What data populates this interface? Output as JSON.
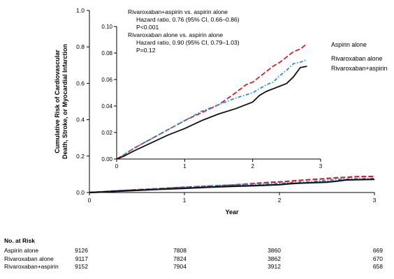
{
  "chart_data": {
    "type": "line",
    "xlabel": "Year",
    "ylabel_line1": "Cumulative Risk of Cardiovascular",
    "ylabel_line2": "Death, Stroke, or Myocardial Infarction",
    "xlim": [
      0,
      3
    ],
    "ylim": [
      0,
      1.0
    ],
    "xticks": [
      "0",
      "1",
      "2",
      "3"
    ],
    "yticks": [
      "0.0",
      "0.2",
      "0.4",
      "0.6",
      "0.8",
      "1.0"
    ],
    "inset": {
      "xlim": [
        0,
        3
      ],
      "ylim": [
        0,
        0.1
      ],
      "xticks": [
        "0",
        "1",
        "2",
        "3"
      ],
      "yticks": [
        "0.00",
        "0.02",
        "0.04",
        "0.06",
        "0.08",
        "0.10"
      ]
    },
    "annotations": [
      "Rivaroxaban+aspirin vs. aspirin alone",
      "Hazard ratio, 0.76 (95% CI, 0.66–0.86)",
      "P<0.001",
      "Rivaroxaban alone vs. aspirin alone",
      "Hazard ratio, 0.90 (95% CI, 0.79–1.03)",
      "P=0.12"
    ],
    "series": [
      {
        "name": "Aspirin alone",
        "color": "#cc2229",
        "dash": "dashed",
        "x": [
          0,
          0.1,
          0.25,
          0.5,
          0.75,
          1.0,
          1.25,
          1.5,
          1.75,
          1.9,
          2.0,
          2.1,
          2.2,
          2.3,
          2.4,
          2.5,
          2.6,
          2.7,
          2.8,
          3.0
        ],
        "y": [
          0,
          0.003,
          0.008,
          0.015,
          0.022,
          0.029,
          0.035,
          0.041,
          0.05,
          0.056,
          0.058,
          0.062,
          0.066,
          0.07,
          0.073,
          0.077,
          0.081,
          0.083,
          0.087,
          0.088
        ]
      },
      {
        "name": "Rivaroxaban alone",
        "color": "#2a8fd4",
        "dash": "dashdot",
        "x": [
          0,
          0.1,
          0.25,
          0.5,
          0.75,
          1.0,
          1.25,
          1.5,
          1.75,
          2.0,
          2.1,
          2.2,
          2.3,
          2.4,
          2.5,
          2.6,
          2.7,
          2.8,
          3.0
        ],
        "y": [
          0,
          0.003,
          0.008,
          0.015,
          0.022,
          0.029,
          0.036,
          0.041,
          0.046,
          0.05,
          0.053,
          0.056,
          0.058,
          0.063,
          0.067,
          0.072,
          0.073,
          0.075,
          0.077
        ]
      },
      {
        "name": "Rivaroxaban+aspirin",
        "color": "#111111",
        "dash": "solid",
        "x": [
          0,
          0.1,
          0.25,
          0.5,
          0.75,
          1.0,
          1.25,
          1.5,
          1.75,
          2.0,
          2.1,
          2.2,
          2.3,
          2.4,
          2.5,
          2.6,
          2.7,
          2.8,
          3.0
        ],
        "y": [
          0,
          0.002,
          0.006,
          0.012,
          0.018,
          0.023,
          0.029,
          0.034,
          0.038,
          0.043,
          0.048,
          0.051,
          0.053,
          0.055,
          0.057,
          0.062,
          0.069,
          0.07,
          0.072
        ]
      }
    ]
  },
  "risk_table": {
    "title": "No. at Risk",
    "rows": [
      {
        "name": "Aspirin alone",
        "values": [
          "9126",
          "7808",
          "3860",
          "669"
        ]
      },
      {
        "name": "Rivaroxaban alone",
        "values": [
          "9117",
          "7824",
          "3862",
          "670"
        ]
      },
      {
        "name": "Rivaroxaban+aspirin",
        "values": [
          "9152",
          "7904",
          "3912",
          "658"
        ]
      }
    ]
  }
}
